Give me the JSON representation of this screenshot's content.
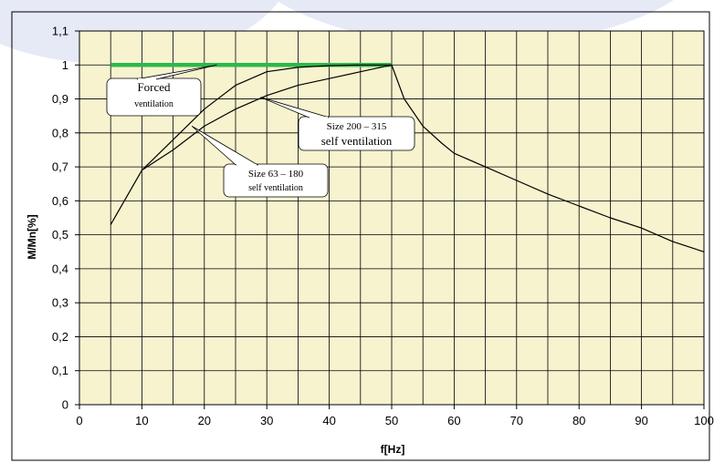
{
  "chart_data": {
    "type": "line",
    "title": "",
    "xlabel": "f[Hz]",
    "ylabel": "M/Mn[%]",
    "xlim": [
      0,
      100
    ],
    "ylim": [
      0,
      1.1
    ],
    "grid": true,
    "x_ticks": [
      0,
      5,
      10,
      15,
      20,
      25,
      30,
      35,
      40,
      45,
      50,
      55,
      60,
      65,
      70,
      75,
      80,
      85,
      90,
      95,
      100
    ],
    "x_tick_labels": [
      "0",
      "10",
      "20",
      "30",
      "40",
      "50",
      "60",
      "70",
      "80",
      "90",
      "100"
    ],
    "y_tick_labels": [
      "0",
      "0,1",
      "0,2",
      "0,3",
      "0,4",
      "0,5",
      "0,6",
      "0,7",
      "0,8",
      "0,9",
      "1",
      "1,1"
    ],
    "series": [
      {
        "color": "#2db84a",
        "x": [
          5,
          50
        ],
        "y": [
          1.0,
          1.0
        ]
      },
      {
        "color": "#000000",
        "x": [
          5,
          10,
          15,
          20,
          25,
          30,
          35,
          40,
          45,
          50
        ],
        "y": [
          0.53,
          0.69,
          0.78,
          0.87,
          0.94,
          0.98,
          0.993,
          0.998,
          1.0,
          1.0
        ]
      },
      {
        "color": "#000000",
        "x": [
          10,
          15,
          20,
          25,
          30,
          35,
          40,
          45,
          50
        ],
        "y": [
          0.69,
          0.75,
          0.82,
          0.87,
          0.91,
          0.94,
          0.96,
          0.98,
          1.0
        ]
      },
      {
        "color": "#000000",
        "x": [
          50,
          52,
          55,
          58,
          60,
          65,
          70,
          75,
          80,
          85,
          90,
          95,
          100
        ],
        "y": [
          1.0,
          0.9,
          0.82,
          0.77,
          0.74,
          0.7,
          0.66,
          0.62,
          0.585,
          0.55,
          0.52,
          0.48,
          0.45
        ]
      }
    ],
    "annotations": [
      {
        "lines": [
          "Forced",
          "ventilation"
        ],
        "font_sizes": [
          13,
          10
        ],
        "point": [
          22,
          1.0
        ]
      },
      {
        "lines": [
          "Size 200 – 315",
          "self ventilation"
        ],
        "font_sizes": [
          11,
          13
        ],
        "point": [
          29,
          0.905
        ]
      },
      {
        "lines": [
          "Size 63 – 180",
          "self ventilation"
        ],
        "font_sizes": [
          11,
          10
        ],
        "point": [
          18,
          0.82
        ]
      }
    ]
  },
  "colors": {
    "background": "#ffffff",
    "plot_area": "#f7f3cf",
    "border": "#000000",
    "grid": "#000000",
    "watermark": "#e6e9f6"
  }
}
